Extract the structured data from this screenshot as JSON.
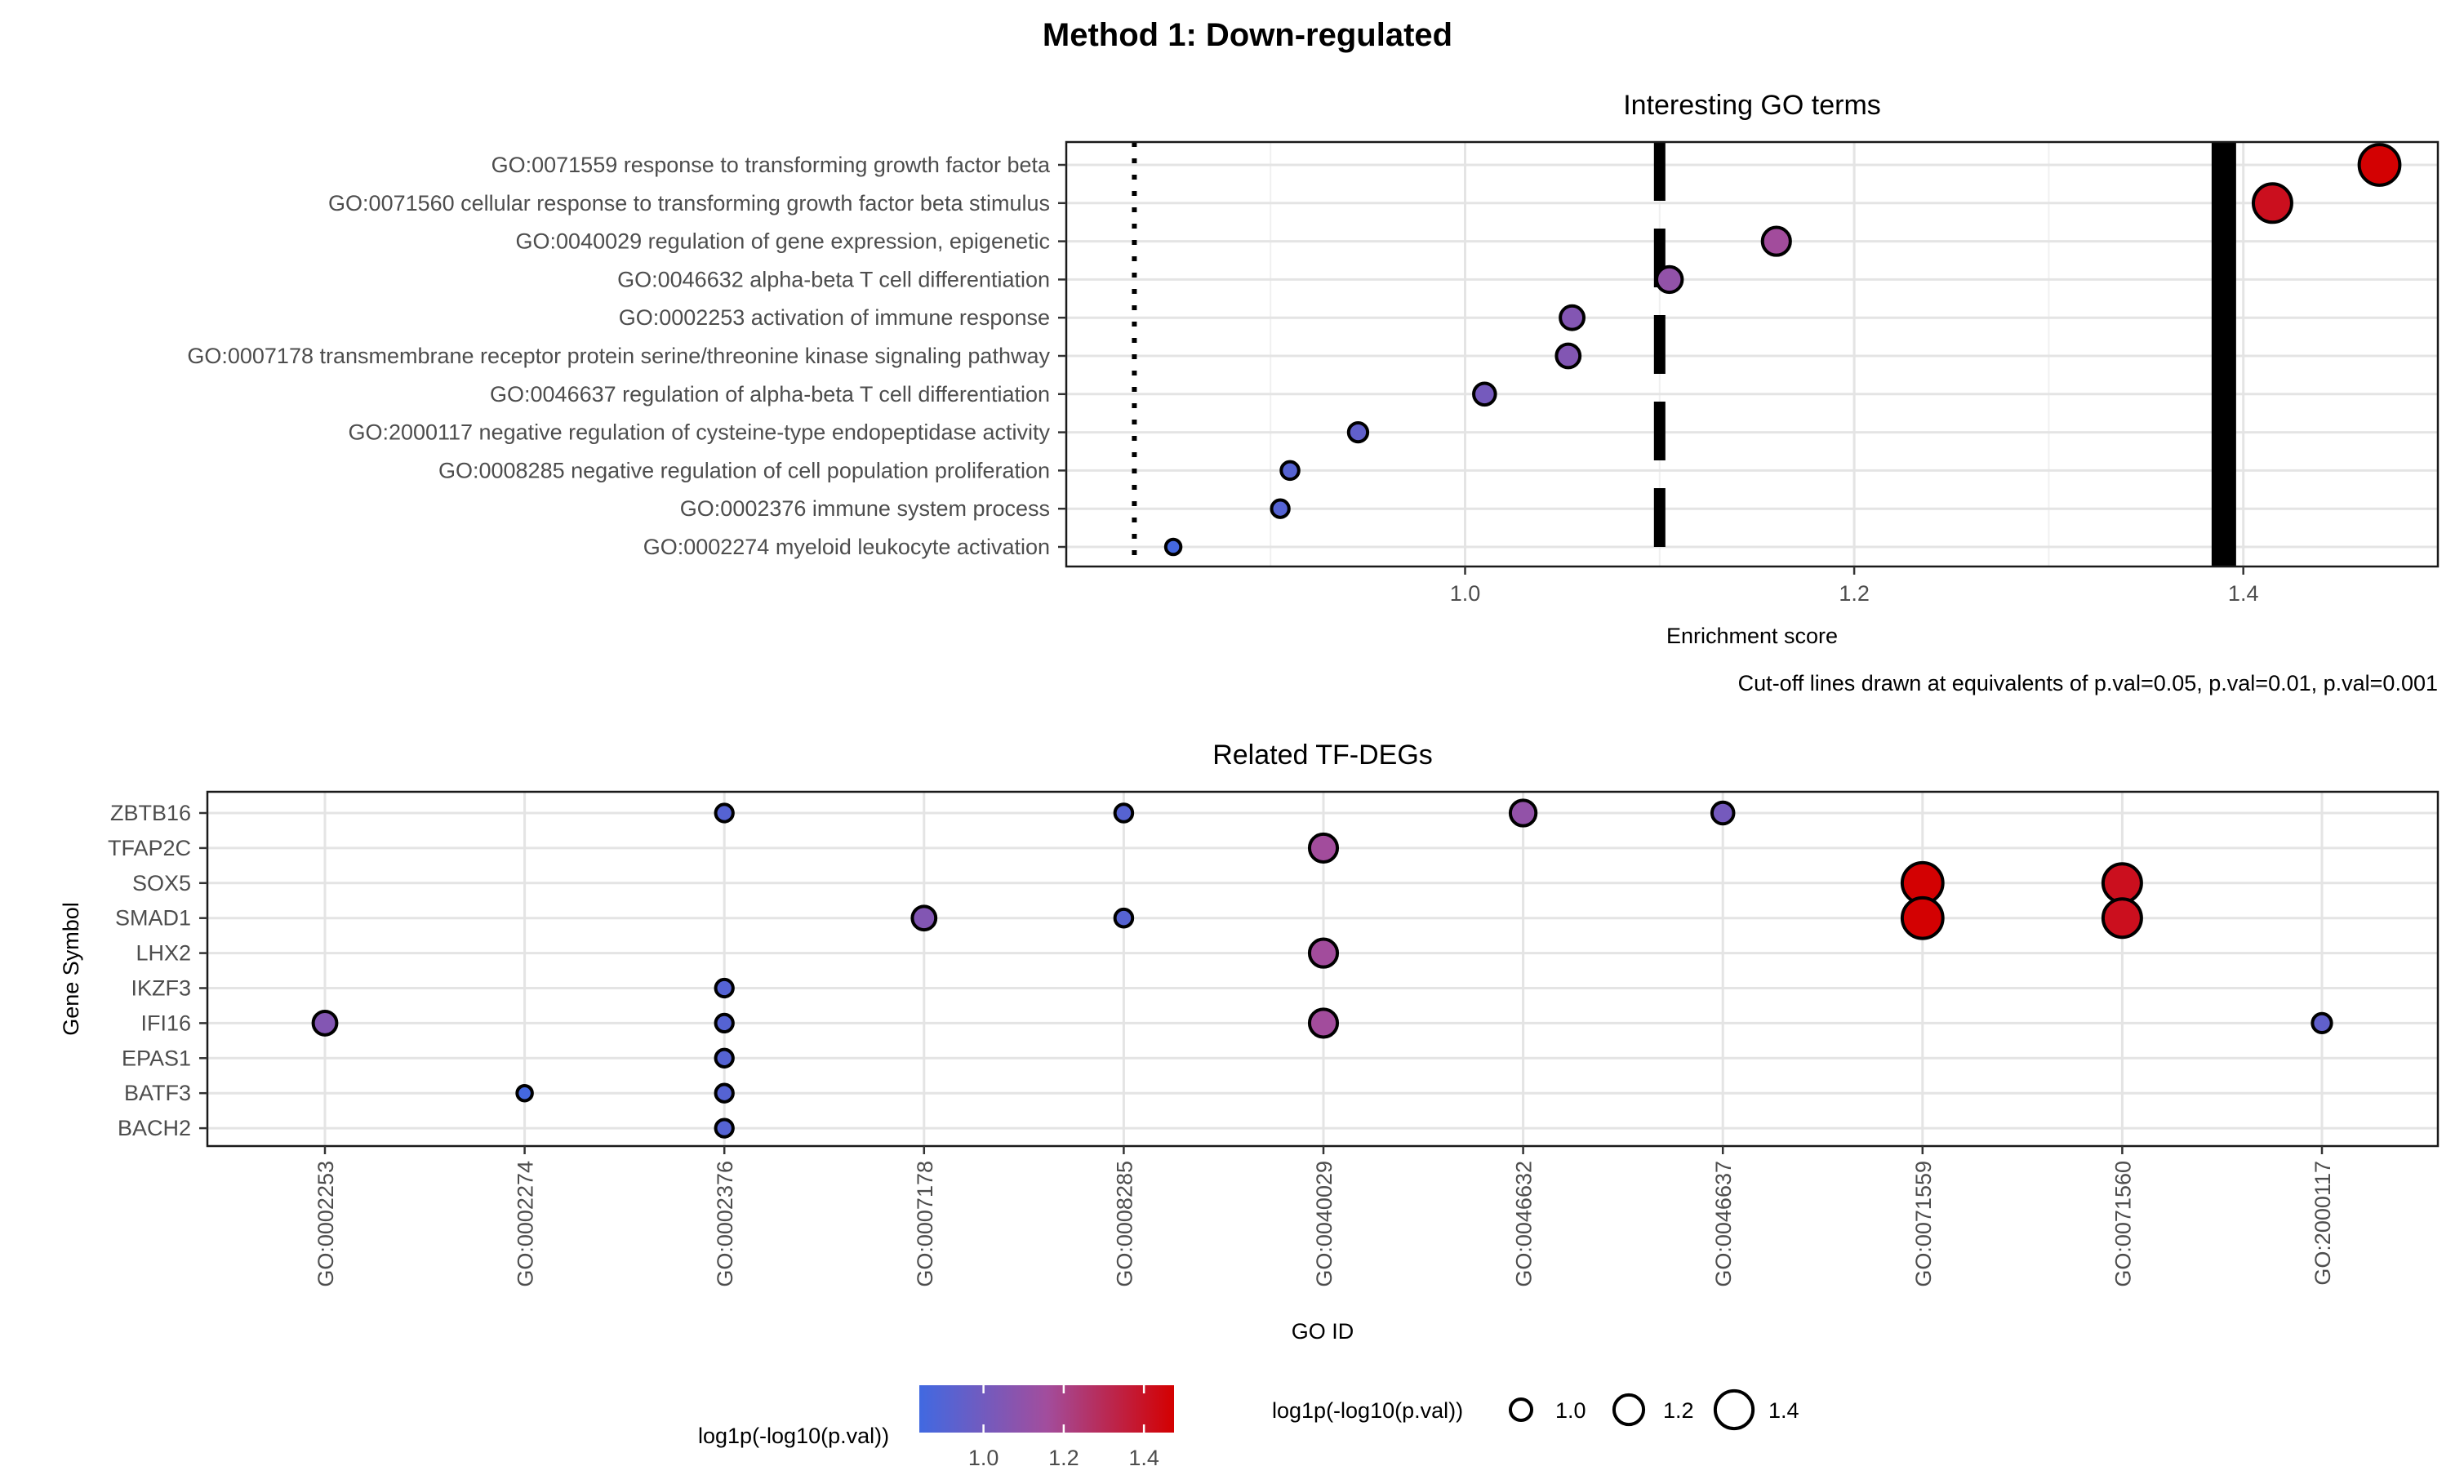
{
  "figure": {
    "title": "Method 1: Down-regulated"
  },
  "chart_data": [
    {
      "type": "scatter",
      "title": "Interesting GO terms",
      "xlabel": "Enrichment score",
      "ylabel": "",
      "xlim": [
        0.795,
        1.5
      ],
      "xticks": [
        1.0,
        1.2,
        1.4
      ],
      "xtick_labels": [
        "1.0",
        "1.2",
        "1.4"
      ],
      "grid": true,
      "caption": "Cut-off lines drawn at equivalents of p.val=0.05, p.val=0.01, p.val=0.001",
      "cutoffs": [
        {
          "pval": "0.05",
          "x": 0.83,
          "style": "dotted"
        },
        {
          "pval": "0.01",
          "x": 1.1,
          "style": "dashed"
        },
        {
          "pval": "0.001",
          "x": 1.39,
          "style": "solid"
        }
      ],
      "terms": [
        {
          "label": "GO:0071559 response to transforming growth factor beta",
          "score": 1.47
        },
        {
          "label": "GO:0071560 cellular response to transforming growth factor beta stimulus",
          "score": 1.415
        },
        {
          "label": "GO:0040029 regulation of gene expression, epigenetic",
          "score": 1.16
        },
        {
          "label": "GO:0046632 alpha-beta T cell differentiation",
          "score": 1.105
        },
        {
          "label": "GO:0002253 activation of immune response",
          "score": 1.055
        },
        {
          "label": "GO:0007178 transmembrane receptor protein serine/threonine kinase signaling pathway",
          "score": 1.053
        },
        {
          "label": "GO:0046637 regulation of alpha-beta T cell differentiation",
          "score": 1.01
        },
        {
          "label": "GO:2000117 negative regulation of cysteine-type endopeptidase activity",
          "score": 0.945
        },
        {
          "label": "GO:0008285 negative regulation of cell population proliferation",
          "score": 0.91
        },
        {
          "label": "GO:0002376 immune system process",
          "score": 0.905
        },
        {
          "label": "GO:0002274 myeloid leukocyte activation",
          "score": 0.85
        }
      ]
    },
    {
      "type": "scatter",
      "title": "Related TF-DEGs",
      "xlabel": "GO ID",
      "ylabel": "Gene Symbol",
      "grid": true,
      "categories": [
        "GO:0002253",
        "GO:0002274",
        "GO:0002376",
        "GO:0007178",
        "GO:0008285",
        "GO:0040029",
        "GO:0046632",
        "GO:0046637",
        "GO:0071559",
        "GO:0071560",
        "GO:2000117"
      ],
      "genes": [
        "ZBTB16",
        "TFAP2C",
        "SOX5",
        "SMAD1",
        "LHX2",
        "IKZF3",
        "IFI16",
        "EPAS1",
        "BATF3",
        "BACH2"
      ],
      "points": [
        {
          "gene": "ZBTB16",
          "go": "GO:0002376",
          "value": 0.905
        },
        {
          "gene": "ZBTB16",
          "go": "GO:0008285",
          "value": 0.91
        },
        {
          "gene": "ZBTB16",
          "go": "GO:0046632",
          "value": 1.105
        },
        {
          "gene": "ZBTB16",
          "go": "GO:0046637",
          "value": 1.01
        },
        {
          "gene": "TFAP2C",
          "go": "GO:0040029",
          "value": 1.16
        },
        {
          "gene": "SOX5",
          "go": "GO:0071559",
          "value": 1.47
        },
        {
          "gene": "SOX5",
          "go": "GO:0071560",
          "value": 1.415
        },
        {
          "gene": "SMAD1",
          "go": "GO:0007178",
          "value": 1.053
        },
        {
          "gene": "SMAD1",
          "go": "GO:0008285",
          "value": 0.91
        },
        {
          "gene": "SMAD1",
          "go": "GO:0071559",
          "value": 1.47
        },
        {
          "gene": "SMAD1",
          "go": "GO:0071560",
          "value": 1.415
        },
        {
          "gene": "LHX2",
          "go": "GO:0040029",
          "value": 1.16
        },
        {
          "gene": "IKZF3",
          "go": "GO:0002376",
          "value": 0.905
        },
        {
          "gene": "IFI16",
          "go": "GO:0002253",
          "value": 1.055
        },
        {
          "gene": "IFI16",
          "go": "GO:0002376",
          "value": 0.905
        },
        {
          "gene": "IFI16",
          "go": "GO:0040029",
          "value": 1.16
        },
        {
          "gene": "IFI16",
          "go": "GO:2000117",
          "value": 0.945
        },
        {
          "gene": "EPAS1",
          "go": "GO:0002376",
          "value": 0.905
        },
        {
          "gene": "BATF3",
          "go": "GO:0002274",
          "value": 0.85
        },
        {
          "gene": "BATF3",
          "go": "GO:0002376",
          "value": 0.905
        },
        {
          "gene": "BACH2",
          "go": "GO:0002376",
          "value": 0.905
        }
      ]
    }
  ],
  "legend": {
    "color_title": "log1p(-log10(p.val))",
    "size_title": "log1p(-log10(p.val))",
    "range": [
      0.84,
      1.475
    ],
    "low_color": "#4169e1",
    "mid_color": "#a24d9d",
    "high_color": "#d40000",
    "ticks": [
      1.0,
      1.2,
      1.4
    ],
    "tick_labels": [
      "1.0",
      "1.2",
      "1.4"
    ]
  }
}
